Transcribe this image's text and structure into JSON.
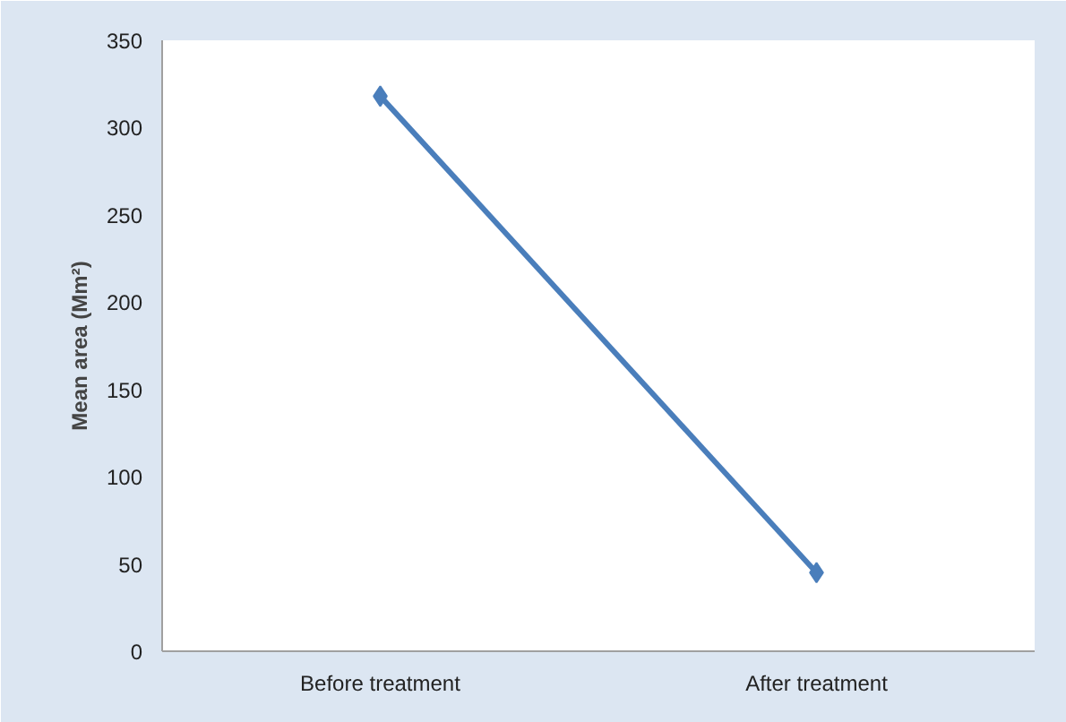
{
  "chart_data": {
    "type": "line",
    "ylabel": "Mean area (Mm²)",
    "categories": [
      "Before treatment",
      "After treatment"
    ],
    "series": [
      {
        "color": "#4a7ebb",
        "values": [
          318,
          45
        ]
      }
    ],
    "ylim": [
      0,
      350
    ],
    "yticks": [
      0,
      50,
      100,
      150,
      200,
      250,
      300,
      350
    ],
    "grid": false,
    "marker": "diamond",
    "line_style": "solid"
  }
}
